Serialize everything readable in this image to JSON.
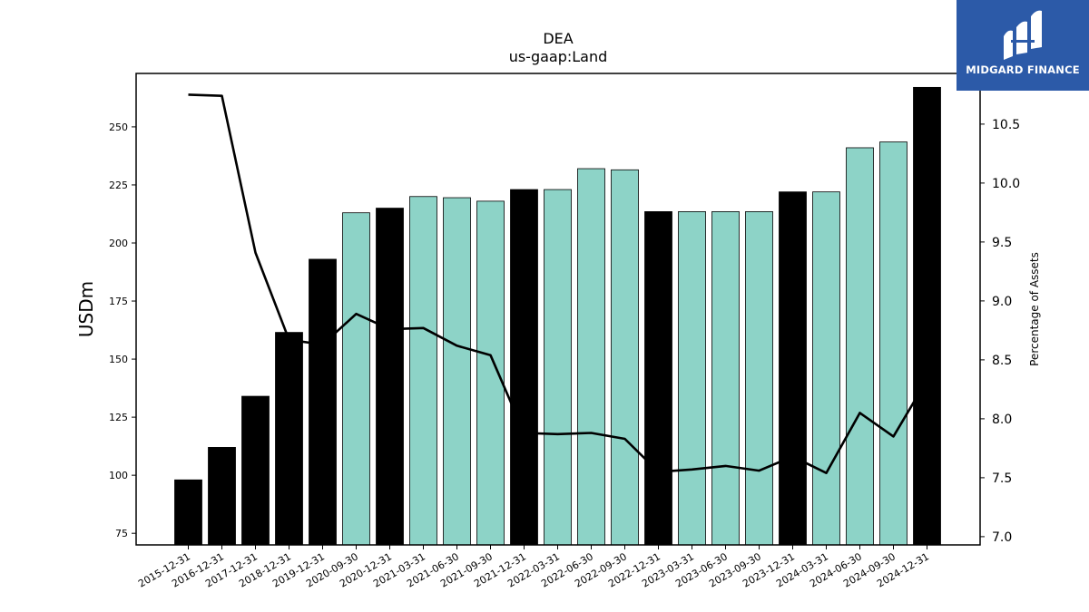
{
  "brand": {
    "name": "MIDGARD FINANCE",
    "color": "#2c5aa8"
  },
  "chart_data": {
    "type": "bar",
    "title": "DEA",
    "subtitle": "us-gaap:Land",
    "ylabel": "USDm",
    "y2label": "Percentage of Assets",
    "ylim": [
      70,
      273
    ],
    "y2lim": [
      6.93,
      10.93
    ],
    "yticks": [
      75,
      100,
      125,
      150,
      175,
      200,
      225,
      250
    ],
    "y2ticks": [
      "7.0",
      "7.5",
      "8.0",
      "8.5",
      "9.0",
      "9.5",
      "10.0",
      "10.5"
    ],
    "colors": {
      "annual": "#000000",
      "quarterly": "#8dd3c7",
      "line": "#000000"
    },
    "categories": [
      "2015-12-31",
      "2016-12-31",
      "2017-12-31",
      "2018-12-31",
      "2019-12-31",
      "2020-09-30",
      "2020-12-31",
      "2021-03-31",
      "2021-06-30",
      "2021-09-30",
      "2021-12-31",
      "2022-03-31",
      "2022-06-30",
      "2022-09-30",
      "2022-12-31",
      "2023-03-31",
      "2023-06-30",
      "2023-09-30",
      "2023-12-31",
      "2024-03-31",
      "2024-06-30",
      "2024-09-30",
      "2024-12-31"
    ],
    "values": [
      98,
      112,
      134,
      161.5,
      193,
      213,
      215,
      220,
      219.5,
      218,
      223,
      223,
      232,
      231.5,
      213.5,
      213.5,
      213.5,
      213.5,
      222,
      222,
      241,
      243.5,
      267
    ],
    "annual": [
      true,
      true,
      true,
      true,
      true,
      false,
      true,
      false,
      false,
      false,
      true,
      false,
      false,
      false,
      true,
      false,
      false,
      false,
      true,
      false,
      false,
      false,
      true
    ],
    "line_values": [
      10.75,
      10.74,
      9.41,
      8.67,
      8.63,
      8.89,
      8.76,
      8.77,
      8.62,
      8.54,
      7.88,
      7.87,
      7.88,
      7.83,
      7.55,
      7.57,
      7.6,
      7.56,
      7.68,
      7.54,
      8.05,
      7.85,
      8.33
    ]
  }
}
